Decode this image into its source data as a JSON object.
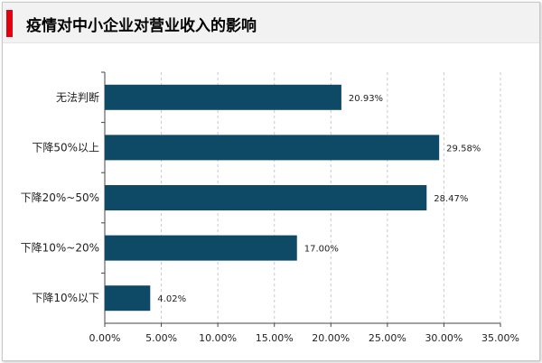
{
  "header": {
    "title": "疫情对中小企业对营业收入的影响",
    "accent_color": "#e0000f"
  },
  "chart_data": {
    "type": "bar",
    "orientation": "horizontal",
    "title": "疫情对中小企业对营业收入的影响",
    "categories": [
      "无法判断",
      "下降50%以上",
      "下降20%~50%",
      "下降10%~20%",
      "下降10%以下"
    ],
    "values": [
      20.93,
      29.58,
      28.47,
      17.0,
      4.02
    ],
    "value_labels": [
      "20.93%",
      "29.58%",
      "28.47%",
      "17.00%",
      "4.02%"
    ],
    "xlim": [
      0,
      35
    ],
    "xticks": [
      "0.00%",
      "5.00%",
      "10.00%",
      "15.00%",
      "20.00%",
      "25.00%",
      "30.00%",
      "35.00%"
    ],
    "xlabel": "",
    "ylabel": "",
    "grid": "vertical dashed",
    "bar_color": "#0e4a66"
  }
}
